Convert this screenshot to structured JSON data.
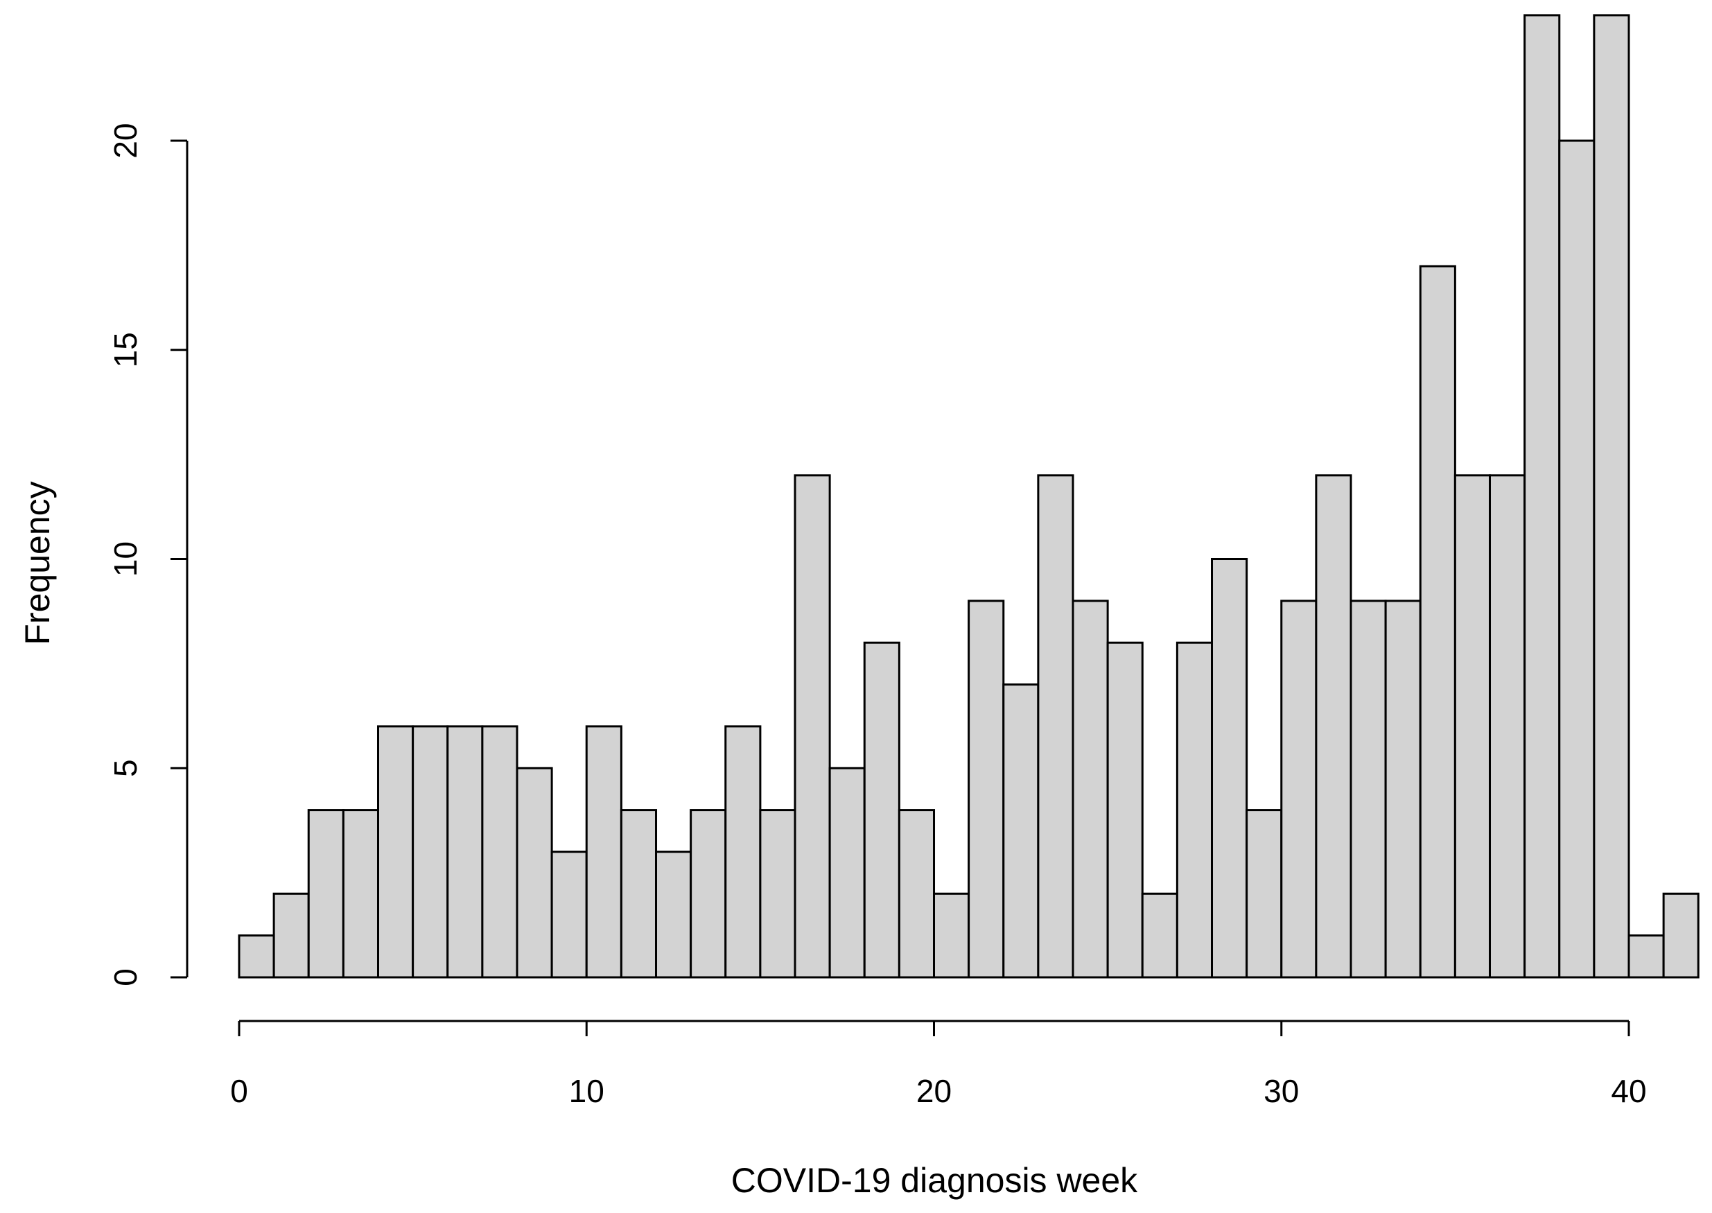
{
  "chart_data": {
    "type": "bar",
    "title": "",
    "xlabel": "COVID-19 diagnosis week",
    "ylabel": "Frequency",
    "bins": [
      [
        0,
        1
      ],
      [
        1,
        2
      ],
      [
        2,
        3
      ],
      [
        3,
        4
      ],
      [
        4,
        5
      ],
      [
        5,
        6
      ],
      [
        6,
        7
      ],
      [
        7,
        8
      ],
      [
        8,
        9
      ],
      [
        9,
        10
      ],
      [
        10,
        11
      ],
      [
        11,
        12
      ],
      [
        12,
        13
      ],
      [
        13,
        14
      ],
      [
        14,
        15
      ],
      [
        15,
        16
      ],
      [
        16,
        17
      ],
      [
        17,
        18
      ],
      [
        18,
        19
      ],
      [
        19,
        20
      ],
      [
        20,
        21
      ],
      [
        21,
        22
      ],
      [
        22,
        23
      ],
      [
        23,
        24
      ],
      [
        24,
        25
      ],
      [
        25,
        26
      ],
      [
        26,
        27
      ],
      [
        27,
        28
      ],
      [
        28,
        29
      ],
      [
        29,
        30
      ],
      [
        30,
        31
      ],
      [
        31,
        32
      ],
      [
        32,
        33
      ],
      [
        33,
        34
      ],
      [
        34,
        35
      ],
      [
        35,
        36
      ],
      [
        36,
        37
      ],
      [
        37,
        38
      ],
      [
        38,
        39
      ],
      [
        39,
        40
      ],
      [
        40,
        41
      ],
      [
        41,
        42
      ]
    ],
    "values": [
      1,
      2,
      4,
      4,
      6,
      6,
      6,
      6,
      5,
      3,
      6,
      4,
      3,
      4,
      6,
      4,
      12,
      5,
      8,
      4,
      2,
      9,
      7,
      12,
      9,
      8,
      2,
      8,
      10,
      4,
      9,
      12,
      9,
      9,
      17,
      12,
      12,
      23,
      20,
      23,
      1,
      2
    ],
    "xlim": [
      0,
      40
    ],
    "ylim": [
      0,
      20
    ],
    "x_ticks": [
      0,
      10,
      20,
      30,
      40
    ],
    "y_ticks": [
      0,
      5,
      10,
      15,
      20
    ],
    "bar_fill": "#d3d3d3",
    "bar_stroke": "#000000",
    "grid": false,
    "legend": "none"
  }
}
